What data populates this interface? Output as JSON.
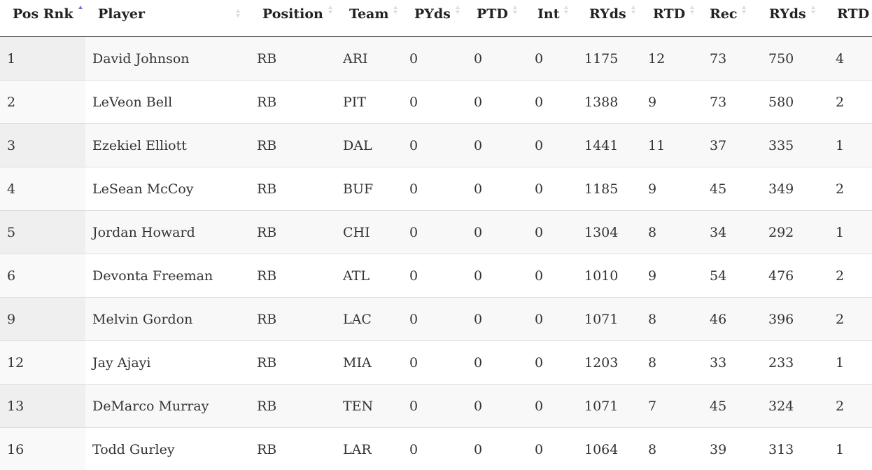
{
  "table": {
    "columns": [
      {
        "key": "pos_rnk",
        "label": "Pos Rnk",
        "sort": "ascending"
      },
      {
        "key": "player",
        "label": "Player",
        "sort": "none"
      },
      {
        "key": "position",
        "label": "Position",
        "sort": "none"
      },
      {
        "key": "team",
        "label": "Team",
        "sort": "none"
      },
      {
        "key": "pyds",
        "label": "PYds",
        "sort": "none"
      },
      {
        "key": "ptd",
        "label": "PTD",
        "sort": "none"
      },
      {
        "key": "int",
        "label": "Int",
        "sort": "none"
      },
      {
        "key": "ryds_rush",
        "label": "RYds",
        "sort": "none"
      },
      {
        "key": "rtd_rush",
        "label": "RTD",
        "sort": "none"
      },
      {
        "key": "rec",
        "label": "Rec",
        "sort": "none"
      },
      {
        "key": "ryds_rec",
        "label": "RYds",
        "sort": "none"
      },
      {
        "key": "rtd_rec",
        "label": "RTD",
        "sort": "none"
      }
    ],
    "sort_colors": {
      "active": "#6b73d6",
      "inactive": "#dddddd"
    },
    "rows": [
      [
        "1",
        "David Johnson",
        "RB",
        "ARI",
        "0",
        "0",
        "0",
        "1175",
        "12",
        "73",
        "750",
        "4"
      ],
      [
        "2",
        "LeVeon Bell",
        "RB",
        "PIT",
        "0",
        "0",
        "0",
        "1388",
        "9",
        "73",
        "580",
        "2"
      ],
      [
        "3",
        "Ezekiel Elliott",
        "RB",
        "DAL",
        "0",
        "0",
        "0",
        "1441",
        "11",
        "37",
        "335",
        "1"
      ],
      [
        "4",
        "LeSean McCoy",
        "RB",
        "BUF",
        "0",
        "0",
        "0",
        "1185",
        "9",
        "45",
        "349",
        "2"
      ],
      [
        "5",
        "Jordan Howard",
        "RB",
        "CHI",
        "0",
        "0",
        "0",
        "1304",
        "8",
        "34",
        "292",
        "1"
      ],
      [
        "6",
        "Devonta Freeman",
        "RB",
        "ATL",
        "0",
        "0",
        "0",
        "1010",
        "9",
        "54",
        "476",
        "2"
      ],
      [
        "9",
        "Melvin Gordon",
        "RB",
        "LAC",
        "0",
        "0",
        "0",
        "1071",
        "8",
        "46",
        "396",
        "2"
      ],
      [
        "12",
        "Jay Ajayi",
        "RB",
        "MIA",
        "0",
        "0",
        "0",
        "1203",
        "8",
        "33",
        "233",
        "1"
      ],
      [
        "13",
        "DeMarco Murray",
        "RB",
        "TEN",
        "0",
        "0",
        "0",
        "1071",
        "7",
        "45",
        "324",
        "2"
      ],
      [
        "16",
        "Todd Gurley",
        "RB",
        "LAR",
        "0",
        "0",
        "0",
        "1064",
        "8",
        "39",
        "313",
        "1"
      ]
    ]
  }
}
